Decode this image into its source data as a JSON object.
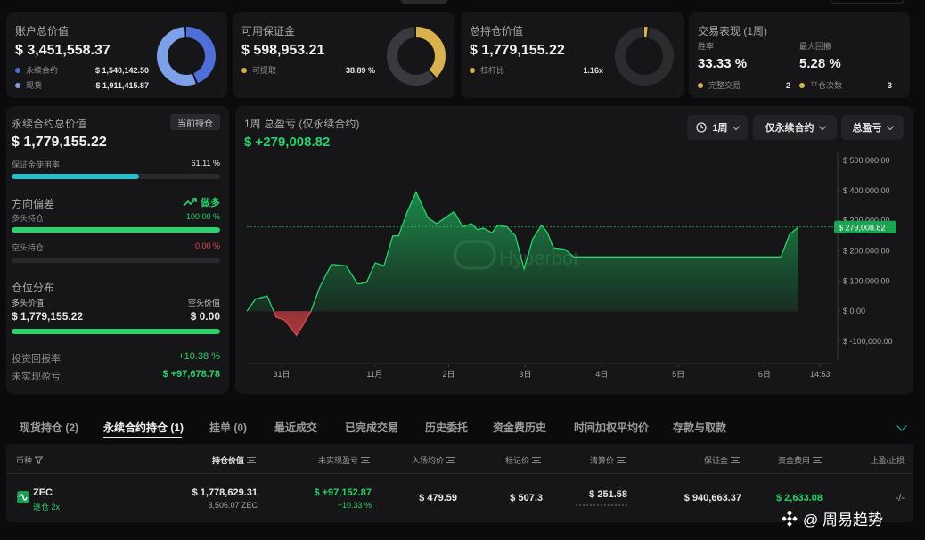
{
  "colors": {
    "perp": "#4f6fd8",
    "spot": "#7ea0e8",
    "gold": "#d8b24e",
    "green": "#2ad36a",
    "red": "#e5484d",
    "teal": "#1fc2c8"
  },
  "summary": {
    "account": {
      "title": "账户总价值",
      "value": "$ 3,451,558.37",
      "rows": [
        {
          "label": "永续合约",
          "value": "$ 1,540,142.50"
        },
        {
          "label": "现货",
          "value": "$ 1,911,415.87"
        }
      ],
      "donut": [
        {
          "fraction": 0.446,
          "color": "#4f6fd8"
        },
        {
          "fraction": 0.554,
          "color": "#7ea0e8"
        }
      ]
    },
    "margin": {
      "title": "可用保证金",
      "value": "$ 598,953.21",
      "row": {
        "label": "可提取",
        "value": "38.89 %"
      },
      "donut": [
        {
          "fraction": 0.3889,
          "color": "#d8b24e"
        },
        {
          "fraction": 0.6111,
          "color": "#3a3a3e"
        }
      ]
    },
    "positions": {
      "title": "总持仓价值",
      "value": "$ 1,779,155.22",
      "row": {
        "label": "杠杆比",
        "value": "1.16x"
      },
      "donut": [
        {
          "fraction": 0.03,
          "color": "#d8b24e"
        },
        {
          "fraction": 0.97,
          "color": "#2c2c30"
        }
      ]
    },
    "performance": {
      "title": "交易表现 (1周)",
      "win_label": "胜率",
      "win_value": "33.33 %",
      "dd_label": "最大回撤",
      "dd_value": "5.28 %",
      "completed_label": "完整交易",
      "completed_value": "2",
      "closes_label": "平仓次数",
      "closes_value": "3"
    }
  },
  "left": {
    "perp_title": "永续合约总价值",
    "current_tag": "当前持仓",
    "perp_value": "$ 1,779,155.22",
    "margin_usage_label": "保证金使用率",
    "margin_usage_value": "61.11 %",
    "margin_usage_fraction": 0.6111,
    "bias_label": "方向偏差",
    "bias_value": "做多",
    "long_label": "多头持仓",
    "long_value": "100.00 %",
    "long_fraction": 1.0,
    "short_label": "空头持仓",
    "short_value": "0.00 %",
    "short_fraction": 0.0,
    "dist_title": "仓位分布",
    "long_val_label": "多头价值",
    "short_val_label": "空头价值",
    "long_val": "$ 1,779,155.22",
    "short_val": "$ 0.00",
    "dist_fraction": 1.0,
    "roi_label": "投资回报率",
    "roi_value": "+10.38 %",
    "upnl_label": "未实现盈亏",
    "upnl_value": "$ +97,678.78"
  },
  "chart_panel": {
    "title": "1周 总盈亏 (仅永续合约)",
    "total": "$ +279,008.82",
    "period_btn": "1周",
    "filter_btn": "仅永续合约",
    "metric_btn": "总盈亏",
    "watermark": "Hyperbot",
    "current_label": "$ 279,008.82"
  },
  "chart_data": {
    "type": "area",
    "y_ticks": [
      "$ 500,000.00",
      "$ 400,000.00",
      "$ 300,000.00",
      "$ 200,000.00",
      "$ 100,000.00",
      "$ 0.00",
      "$ -100,000.00"
    ],
    "y_tick_values": [
      500000,
      400000,
      300000,
      200000,
      100000,
      0,
      -100000
    ],
    "ylim": [
      -100000,
      500000
    ],
    "x_ticks": [
      "31日",
      "11月",
      "2日",
      "3日",
      "4日",
      "5日",
      "6日",
      "14:53"
    ],
    "x_tick_positions": [
      0.0596,
      0.2191,
      0.3458,
      0.477,
      0.6081,
      0.7391,
      0.8868,
      0.9821
    ],
    "x": [
      0,
      0.015,
      0.035,
      0.05,
      0.065,
      0.085,
      0.095,
      0.11,
      0.125,
      0.145,
      0.17,
      0.19,
      0.205,
      0.22,
      0.235,
      0.25,
      0.26,
      0.275,
      0.29,
      0.31,
      0.325,
      0.34,
      0.355,
      0.37,
      0.385,
      0.395,
      0.405,
      0.42,
      0.43,
      0.445,
      0.46,
      0.475,
      0.49,
      0.505,
      0.515,
      0.525,
      0.545,
      0.56,
      0.575,
      0.59,
      0.61,
      0.63,
      0.9,
      0.915,
      0.93,
      0.945
    ],
    "values": [
      0,
      40000,
      50000,
      -20000,
      -30000,
      -80000,
      -50000,
      0,
      80000,
      155000,
      150000,
      90000,
      95000,
      160000,
      150000,
      250000,
      250000,
      330000,
      395000,
      310000,
      290000,
      310000,
      330000,
      280000,
      290000,
      270000,
      275000,
      260000,
      285000,
      280000,
      250000,
      140000,
      240000,
      285000,
      260000,
      210000,
      205000,
      180000,
      180000,
      180000,
      180000,
      180000,
      180000,
      180000,
      255000,
      279008.82
    ],
    "reference_value": 279008.82
  },
  "tabs": [
    "现货持仓 (2)",
    "永续合约持仓 (1)",
    "挂单 (0)",
    "最近成交",
    "已完成交易",
    "历史委托",
    "资金费历史",
    "时间加权平均价",
    "存款与取款"
  ],
  "table": {
    "headers": [
      "币种",
      "持仓价值",
      "未实现盈亏",
      "入场均价",
      "标记价",
      "清算价",
      "保证金",
      "资金费用",
      "止盈/止损"
    ],
    "row": {
      "coin": "ZEC",
      "mode": "逐仓 2x",
      "value": "$ 1,778,629.31",
      "size": "3,506.07 ZEC",
      "upnl": "$ +97,152.87",
      "upnl_pct": "+10.33 %",
      "entry": "$ 479.59",
      "mark": "$ 507.3",
      "liq": "$ 251.58",
      "margin": "$ 940,663.37",
      "funding": "$ 2,633.08",
      "tpsl": "-/-"
    }
  },
  "watermark_text": "@ 周易趋势"
}
